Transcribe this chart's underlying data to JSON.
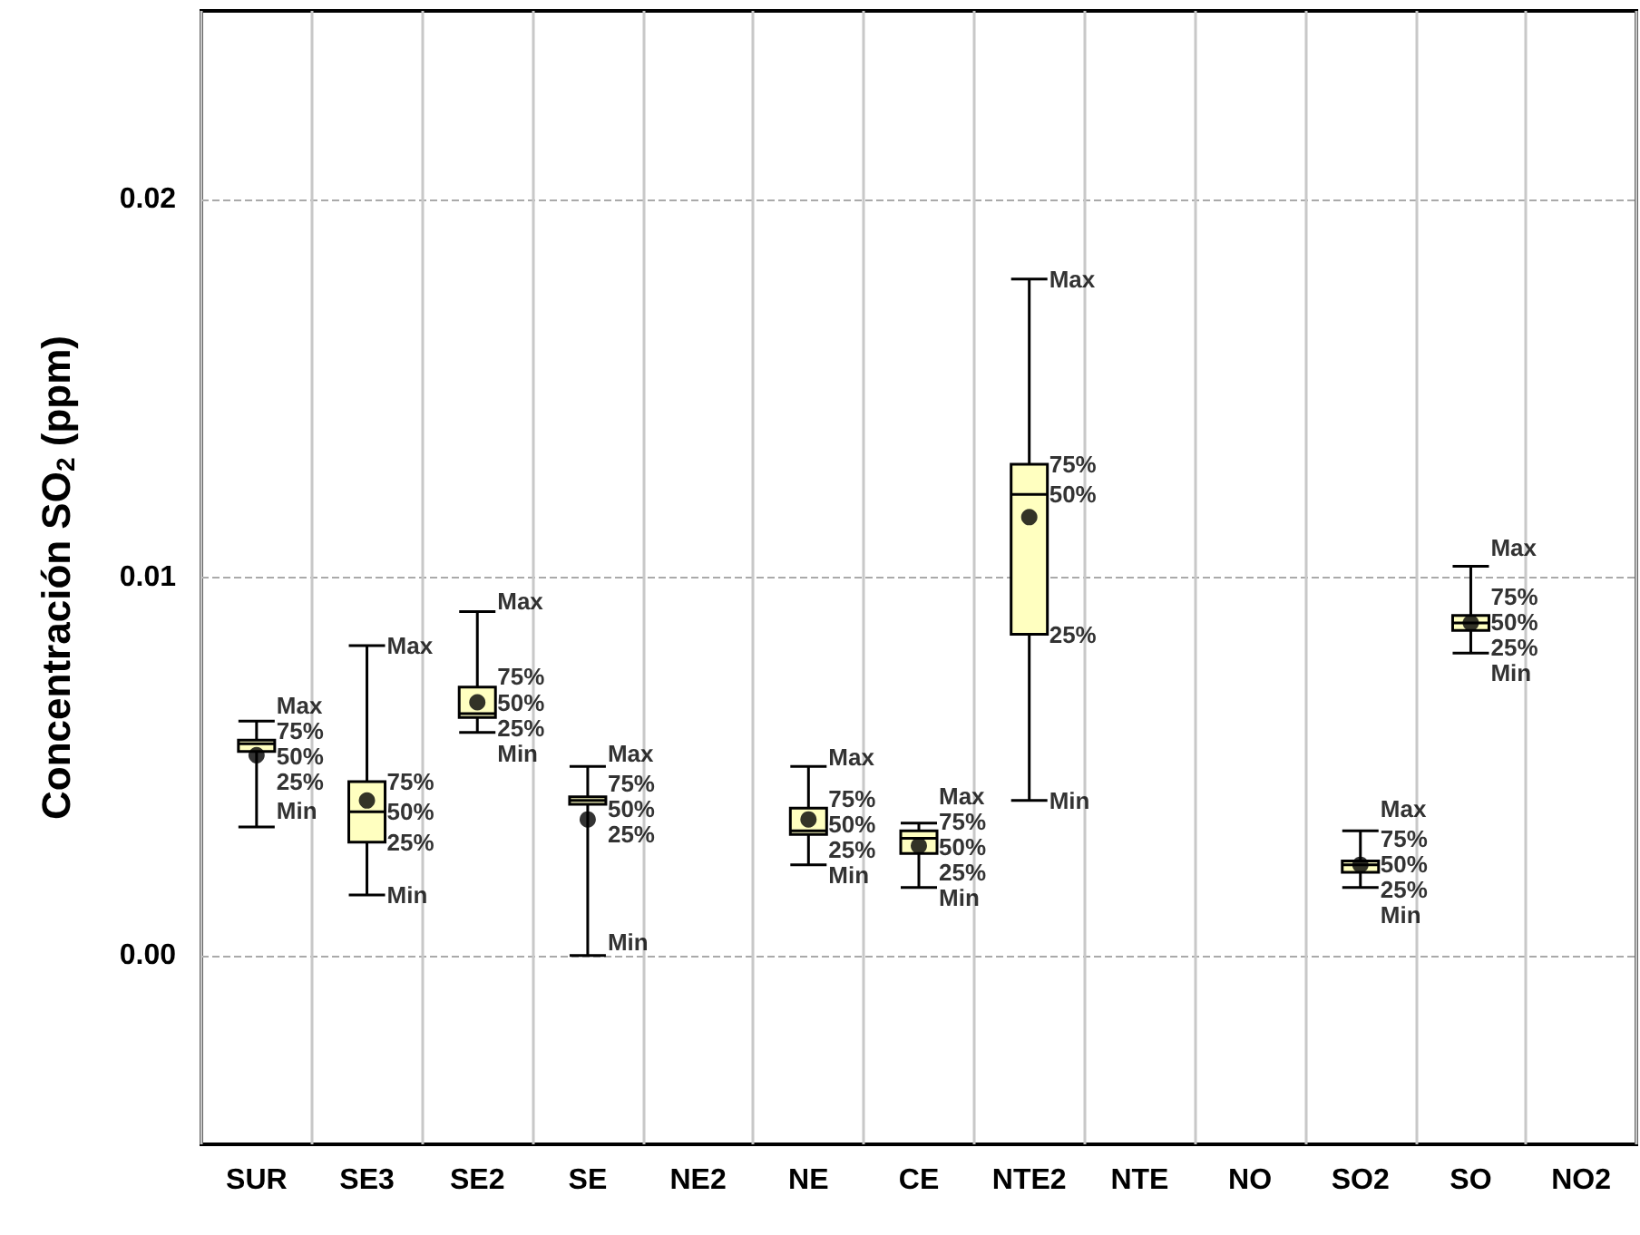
{
  "chart_data": {
    "type": "box",
    "ylabel": "Concentración SO$_{2}$ (ppm)",
    "categories": [
      "SUR",
      "SE3",
      "SE2",
      "SE",
      "NE2",
      "NE",
      "CE",
      "NTE2",
      "NTE",
      "NO",
      "SO2",
      "SO",
      "NO2"
    ],
    "color": "#ffffc0",
    "marker": "circle",
    "boxes": [
      {
        "low": 0.0034,
        "q1": 0.0054,
        "median": 0.0056,
        "q3": 0.0057,
        "high": 0.0062,
        "mean": 0.0053
      },
      {
        "low": 0.0016,
        "q1": 0.003,
        "median": 0.0038,
        "q3": 0.0046,
        "high": 0.0082,
        "mean": 0.0041
      },
      {
        "low": 0.0059,
        "q1": 0.0063,
        "median": 0.0064,
        "q3": 0.0071,
        "high": 0.0091,
        "mean": 0.0067
      },
      {
        "low": 0.0,
        "q1": 0.004,
        "median": 0.0041,
        "q3": 0.0042,
        "high": 0.005,
        "mean": 0.0036
      },
      null,
      {
        "low": 0.0024,
        "q1": 0.0032,
        "median": 0.0033,
        "q3": 0.0039,
        "high": 0.005,
        "mean": 0.0036
      },
      {
        "low": 0.0018,
        "q1": 0.0027,
        "median": 0.0031,
        "q3": 0.0033,
        "high": 0.0035,
        "mean": 0.0029
      },
      {
        "low": 0.0041,
        "q1": 0.0085,
        "median": 0.0122,
        "q3": 0.013,
        "high": 0.0179,
        "mean": 0.0116
      },
      null,
      null,
      {
        "low": 0.0018,
        "q1": 0.0022,
        "median": 0.0024,
        "q3": 0.0025,
        "high": 0.0033,
        "mean": 0.0024
      },
      {
        "low": 0.008,
        "q1": 0.0086,
        "median": 0.0088,
        "q3": 0.009,
        "high": 0.0103,
        "mean": 0.0088
      },
      null
    ],
    "ylim": [
      -0.005,
      0.025
    ],
    "yticks": [
      {
        "value": 0,
        "label": "0.00"
      },
      {
        "value": 0.01,
        "label": "0.01"
      },
      {
        "value": 0.02,
        "label": "0.02"
      }
    ],
    "grid": true,
    "annotations": [
      {
        "text": "Max",
        "x": "SUR",
        "y": 0.0062
      },
      {
        "text": "75%",
        "x": "SUR",
        "y": 0.0057
      },
      {
        "text": "50%",
        "x": "SUR",
        "y": 0.0056
      },
      {
        "text": "25%",
        "x": "SUR",
        "y": 0.0054
      },
      {
        "text": "Min",
        "x": "SUR",
        "y": 0.0034
      },
      {
        "text": "Max",
        "x": "SE3",
        "y": 0.0082
      },
      {
        "text": "75%",
        "x": "SE3",
        "y": 0.0046
      },
      {
        "text": "50%",
        "x": "SE3",
        "y": 0.0038
      },
      {
        "text": "25%",
        "x": "SE3",
        "y": 0.003
      },
      {
        "text": "Min",
        "x": "SE3",
        "y": 0.0016
      },
      {
        "text": "Max",
        "x": "SE2",
        "y": 0.0091
      },
      {
        "text": "75%",
        "x": "SE2",
        "y": 0.0071
      },
      {
        "text": "50%",
        "x": "SE2",
        "y": 0.0064
      },
      {
        "text": "25%",
        "x": "SE2",
        "y": 0.0063
      },
      {
        "text": "Min",
        "x": "SE2",
        "y": 0.0059
      },
      {
        "text": "Max",
        "x": "SE",
        "y": 0.005
      },
      {
        "text": "75%",
        "x": "SE",
        "y": 0.0042
      },
      {
        "text": "50%",
        "x": "SE",
        "y": 0.0041
      },
      {
        "text": "25%",
        "x": "SE",
        "y": 0.004
      },
      {
        "text": "Min",
        "x": "SE",
        "y": 0.0
      },
      {
        "text": "Max",
        "x": "NE",
        "y": 0.005
      },
      {
        "text": "75%",
        "x": "NE",
        "y": 0.0039
      },
      {
        "text": "50%",
        "x": "NE",
        "y": 0.0033
      },
      {
        "text": "25%",
        "x": "NE",
        "y": 0.0032
      },
      {
        "text": "Min",
        "x": "NE",
        "y": 0.0024
      },
      {
        "text": "Max",
        "x": "CE",
        "y": 0.0035
      },
      {
        "text": "75%",
        "x": "CE",
        "y": 0.0033
      },
      {
        "text": "50%",
        "x": "CE",
        "y": 0.0031
      },
      {
        "text": "25%",
        "x": "CE",
        "y": 0.0027
      },
      {
        "text": "Min",
        "x": "CE",
        "y": 0.0018
      },
      {
        "text": "Max",
        "x": "NTE2",
        "y": 0.0179
      },
      {
        "text": "75%",
        "x": "NTE2",
        "y": 0.013
      },
      {
        "text": "50%",
        "x": "NTE2",
        "y": 0.0122
      },
      {
        "text": "25%",
        "x": "NTE2",
        "y": 0.0085
      },
      {
        "text": "Min",
        "x": "NTE2",
        "y": 0.0041
      },
      {
        "text": "Max",
        "x": "SO2",
        "y": 0.0033
      },
      {
        "text": "75%",
        "x": "SO2",
        "y": 0.0025
      },
      {
        "text": "50%",
        "x": "SO2",
        "y": 0.0024
      },
      {
        "text": "25%",
        "x": "SO2",
        "y": 0.0022
      },
      {
        "text": "Min",
        "x": "SO2",
        "y": 0.0018
      },
      {
        "text": "Max",
        "x": "SO",
        "y": 0.0103
      },
      {
        "text": "75%",
        "x": "SO",
        "y": 0.009
      },
      {
        "text": "50%",
        "x": "SO",
        "y": 0.0088
      },
      {
        "text": "25%",
        "x": "SO",
        "y": 0.0086
      },
      {
        "text": "Min",
        "x": "SO",
        "y": 0.008
      }
    ]
  }
}
